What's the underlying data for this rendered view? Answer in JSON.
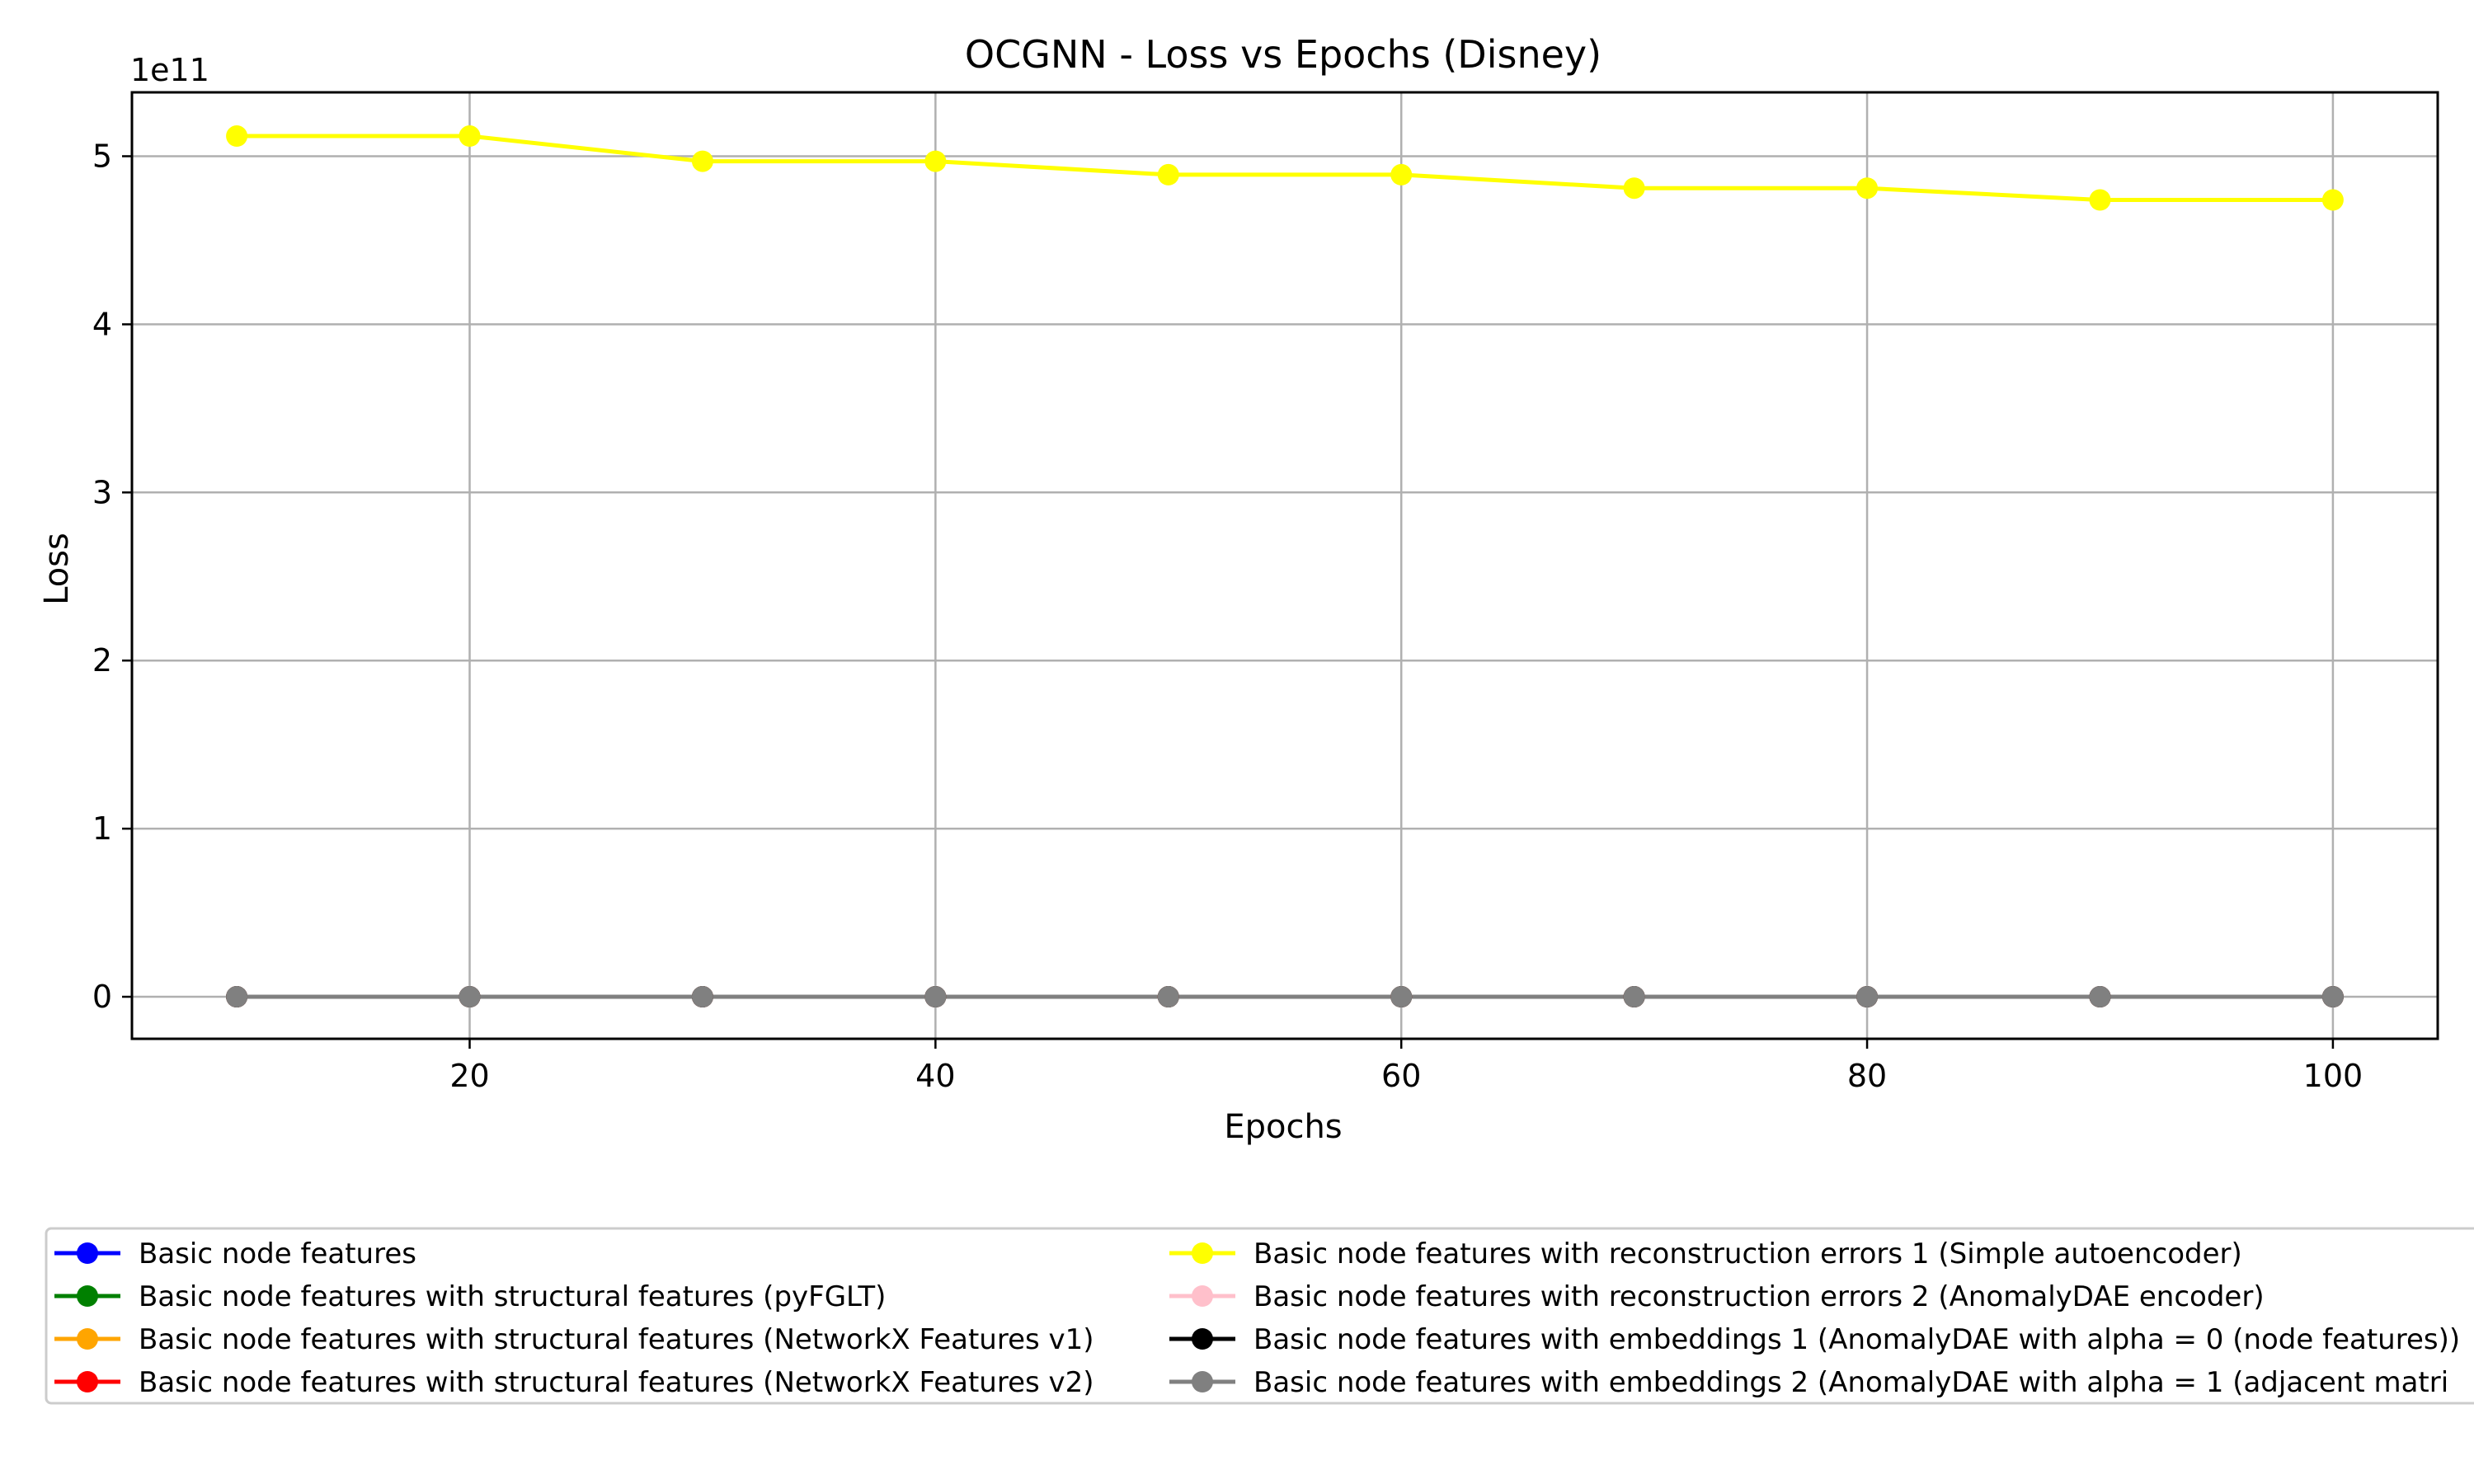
{
  "chart_data": {
    "type": "line",
    "title": "OCGNN - Loss vs Epochs (Disney)",
    "xlabel": "Epochs",
    "ylabel": "Loss",
    "y_offset_label": "1e11",
    "xlim": [
      5.5,
      104.5
    ],
    "ylim": [
      -0.25,
      5.38
    ],
    "x_ticks": [
      20,
      40,
      60,
      80,
      100
    ],
    "x_tick_labels": [
      "20",
      "40",
      "60",
      "80",
      "100"
    ],
    "y_ticks": [
      0,
      1,
      2,
      3,
      4,
      5
    ],
    "y_tick_labels": [
      "0",
      "1",
      "2",
      "3",
      "4",
      "5"
    ],
    "y_scale_note": "values in units of 1e11",
    "grid": true,
    "legend_position": "below plot, two columns",
    "x": [
      10,
      20,
      30,
      40,
      50,
      60,
      70,
      80,
      90,
      100
    ],
    "series": [
      {
        "name": "Basic node features",
        "color": "#0000ff",
        "values": [
          0,
          0,
          0,
          0,
          0,
          0,
          0,
          0,
          0,
          0
        ]
      },
      {
        "name": "Basic node features with structural features (pyFGLT)",
        "color": "#008000",
        "values": [
          0,
          0,
          0,
          0,
          0,
          0,
          0,
          0,
          0,
          0
        ]
      },
      {
        "name": "Basic node features with structural features (NetworkX Features v1)",
        "color": "#ffa500",
        "values": [
          0,
          0,
          0,
          0,
          0,
          0,
          0,
          0,
          0,
          0
        ]
      },
      {
        "name": "Basic node features with structural features (NetworkX Features v2)",
        "color": "#ff0000",
        "values": [
          0,
          0,
          0,
          0,
          0,
          0,
          0,
          0,
          0,
          0
        ]
      },
      {
        "name": "Basic node features with reconstruction errors 1 (Simple autoencoder)",
        "color": "#ffff00",
        "values": [
          5.12,
          5.12,
          4.97,
          4.97,
          4.89,
          4.89,
          4.81,
          4.81,
          4.74,
          4.74
        ]
      },
      {
        "name": "Basic node features with reconstruction errors 2 (AnomalyDAE encoder)",
        "color": "#ffc0cb",
        "values": [
          0,
          0,
          0,
          0,
          0,
          0,
          0,
          0,
          0,
          0
        ]
      },
      {
        "name": "Basic node features with embeddings 1 (AnomalyDAE with alpha = 0 (node features))",
        "color": "#000000",
        "values": [
          0,
          0,
          0,
          0,
          0,
          0,
          0,
          0,
          0,
          0
        ]
      },
      {
        "name": "Basic node features with embeddings 2 (AnomalyDAE with alpha = 1 (adjacent matri",
        "color": "#808080",
        "values": [
          0,
          0,
          0,
          0,
          0,
          0,
          0,
          0,
          0,
          0
        ]
      }
    ]
  }
}
